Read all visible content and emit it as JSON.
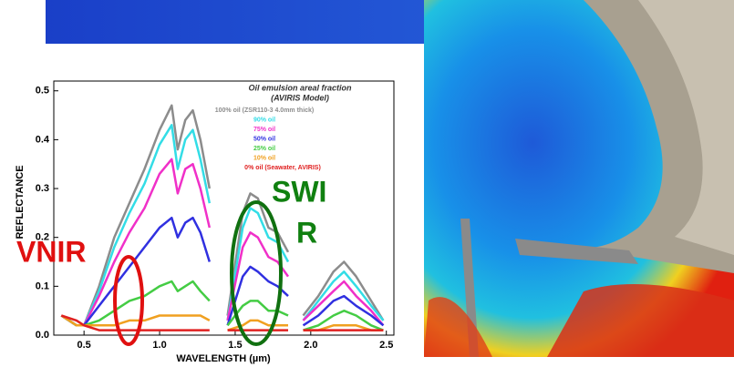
{
  "chart_data": {
    "type": "line",
    "title": "Oil emulsion areal fraction",
    "subtitle": "(AVIRIS Model)",
    "xlabel": "WAVELENGTH (µm)",
    "ylabel": "REFLECTANCE",
    "annotations": [
      "VNIR",
      "SWI",
      "R"
    ],
    "xlim": [
      0.3,
      2.55
    ],
    "ylim": [
      0,
      0.52
    ],
    "xticks": [
      {
        "value": 0.5,
        "label": "0.5"
      },
      {
        "value": 1,
        "label": "1.0"
      },
      {
        "value": 1.5,
        "label": "1.5"
      },
      {
        "value": 2,
        "label": "2.0"
      },
      {
        "value": 2.5,
        "label": "2.5"
      }
    ],
    "yticks": [
      {
        "value": 0,
        "label": "0.0"
      },
      0.1,
      0.2,
      0.3,
      0.4,
      0.5
    ],
    "x": [
      0.35,
      0.45,
      0.5,
      0.6,
      0.7,
      0.8,
      0.9,
      1.0,
      1.08,
      1.12,
      1.17,
      1.22,
      1.27,
      1.33,
      1.4,
      1.45,
      1.55,
      1.6,
      1.65,
      1.72,
      1.78,
      1.85,
      1.9,
      1.95,
      2.05,
      2.15,
      2.22,
      2.3,
      2.4,
      2.48
    ],
    "series": [
      {
        "name": "100% oil (ZSR110-3 4.0mm thick)",
        "color": "#8c8c8c",
        "values": [
          0.04,
          0.02,
          0.02,
          0.1,
          0.2,
          0.27,
          0.34,
          0.42,
          0.47,
          0.38,
          0.44,
          0.46,
          0.4,
          0.3,
          null,
          0.04,
          0.25,
          0.29,
          0.28,
          0.22,
          0.21,
          0.17,
          null,
          0.04,
          0.08,
          0.13,
          0.15,
          0.12,
          0.07,
          0.03
        ]
      },
      {
        "name": "90% oil",
        "color": "#33dde6",
        "values": [
          0.04,
          0.02,
          0.02,
          0.09,
          0.18,
          0.25,
          0.31,
          0.39,
          0.43,
          0.34,
          0.4,
          0.42,
          0.36,
          0.27,
          null,
          0.03,
          0.22,
          0.26,
          0.25,
          0.2,
          0.19,
          0.15,
          null,
          0.03,
          0.07,
          0.11,
          0.13,
          0.1,
          0.06,
          0.03
        ]
      },
      {
        "name": "75% oil",
        "color": "#f030c8",
        "values": [
          0.04,
          0.02,
          0.02,
          0.08,
          0.15,
          0.21,
          0.26,
          0.33,
          0.36,
          0.29,
          0.34,
          0.35,
          0.3,
          0.22,
          null,
          0.03,
          0.18,
          0.21,
          0.2,
          0.16,
          0.15,
          0.12,
          null,
          0.03,
          0.06,
          0.09,
          0.11,
          0.08,
          0.05,
          0.02
        ]
      },
      {
        "name": "50% oil",
        "color": "#3030e0",
        "values": [
          0.04,
          0.02,
          0.02,
          0.06,
          0.1,
          0.14,
          0.18,
          0.22,
          0.24,
          0.2,
          0.23,
          0.24,
          0.21,
          0.15,
          null,
          0.02,
          0.12,
          0.14,
          0.13,
          0.11,
          0.1,
          0.08,
          null,
          0.02,
          0.04,
          0.07,
          0.08,
          0.06,
          0.04,
          0.02
        ]
      },
      {
        "name": "25% oil",
        "color": "#44cc44",
        "values": [
          0.04,
          0.02,
          0.02,
          0.03,
          0.05,
          0.07,
          0.08,
          0.1,
          0.11,
          0.09,
          0.1,
          0.11,
          0.09,
          0.07,
          null,
          0.02,
          0.06,
          0.07,
          0.07,
          0.05,
          0.05,
          0.04,
          null,
          0.01,
          0.02,
          0.04,
          0.05,
          0.04,
          0.02,
          0.01
        ]
      },
      {
        "name": "10% oil",
        "color": "#f0a020",
        "values": [
          0.04,
          0.02,
          0.02,
          0.02,
          0.02,
          0.03,
          0.03,
          0.04,
          0.04,
          0.04,
          0.04,
          0.04,
          0.04,
          0.03,
          null,
          0.01,
          0.02,
          0.03,
          0.03,
          0.02,
          0.02,
          0.02,
          null,
          0.01,
          0.01,
          0.02,
          0.02,
          0.02,
          0.01,
          0.01
        ]
      },
      {
        "name": "0% oil (Seawater, AVIRIS)",
        "color": "#e02020",
        "values": [
          0.04,
          0.03,
          0.02,
          0.01,
          0.01,
          0.01,
          0.01,
          0.01,
          0.01,
          0.01,
          0.01,
          0.01,
          0.01,
          0.01,
          null,
          0.01,
          0.01,
          0.01,
          0.01,
          0.01,
          0.01,
          0.01,
          null,
          0.01,
          0.01,
          0.01,
          0.01,
          0.01,
          0.01,
          0.01
        ]
      }
    ]
  }
}
